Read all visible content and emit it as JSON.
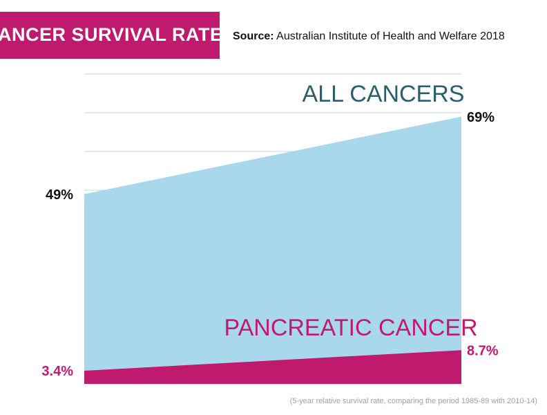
{
  "chart_data": {
    "type": "area",
    "title": "CANCER SURVIVAL RATES",
    "source_label": "Source:",
    "source": "Australian Institute of Health and Welfare 2018",
    "footnote": "(5-year relative survival rate, comparing the period 1985-89 with 2010-14)",
    "ylim": [
      0,
      80
    ],
    "yticks": [
      0,
      10,
      20,
      30,
      40,
      50,
      60,
      70,
      80
    ],
    "grid": true,
    "series": [
      {
        "name": "ALL CANCERS",
        "color": "#a9d8ec",
        "values": [
          49,
          69
        ],
        "value_labels": [
          "49%",
          "69%"
        ]
      },
      {
        "name": "PANCREATIC CANCER",
        "color": "#c01a6e",
        "values": [
          3.4,
          8.7
        ],
        "value_labels": [
          "3.4%",
          "8.7%"
        ]
      }
    ]
  }
}
